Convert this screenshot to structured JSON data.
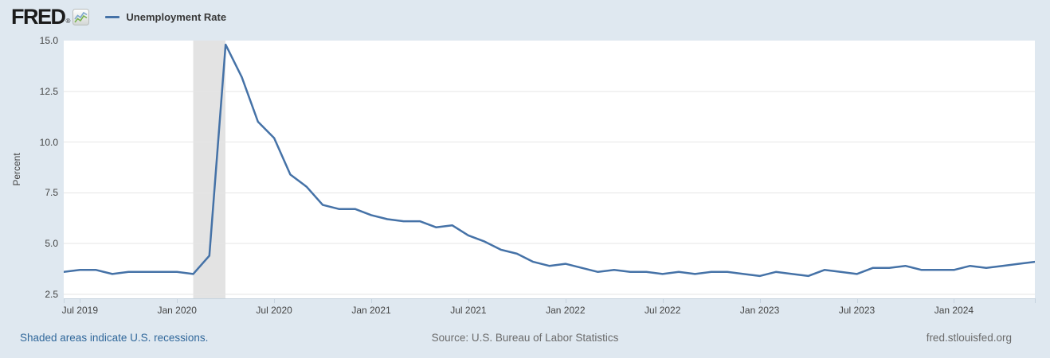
{
  "header": {
    "logo_text": "FRED",
    "registered_mark": "®",
    "legend_label": "Unemployment Rate"
  },
  "footer": {
    "recession_note": "Shaded areas indicate U.S. recessions.",
    "source": "Source: U.S. Bureau of Labor Statistics",
    "site": "fred.stlouisfed.org"
  },
  "colors": {
    "page_background": "#dfe8f0",
    "plot_background": "#ffffff",
    "line": "#4572a7",
    "recession_band": "#e3e3e3",
    "gridline": "#e6e6e6",
    "axis_line": "#c6d3df",
    "tick_label": "#444444",
    "footer_link": "#31689b",
    "footer_text": "#6b6b6b"
  },
  "chart_data": {
    "type": "line",
    "title": "Unemployment Rate",
    "ylabel": "Percent",
    "frequency": "monthly",
    "x_start": "2019-06",
    "x_end": "2024-06",
    "ylim": [
      2.3,
      15.0
    ],
    "grid": true,
    "legend_position": "top-left",
    "gridline_values": [
      15.0,
      12.5,
      10.0,
      7.5,
      5.0,
      2.5
    ],
    "x_ticks": [
      {
        "label": "Jul 2019",
        "month_index": 1
      },
      {
        "label": "Jan 2020",
        "month_index": 7
      },
      {
        "label": "Jul 2020",
        "month_index": 13
      },
      {
        "label": "Jan 2021",
        "month_index": 19
      },
      {
        "label": "Jul 2021",
        "month_index": 25
      },
      {
        "label": "Jan 2022",
        "month_index": 31
      },
      {
        "label": "Jul 2022",
        "month_index": 37
      },
      {
        "label": "Jan 2023",
        "month_index": 43
      },
      {
        "label": "Jul 2023",
        "month_index": 49
      },
      {
        "label": "Jan 2024",
        "month_index": 55
      }
    ],
    "recession_bands": [
      {
        "start": "2020-02",
        "end": "2020-04",
        "start_month_index": 8,
        "end_month_index": 10
      }
    ],
    "series": [
      {
        "name": "Unemployment Rate",
        "color": "#4572a7",
        "months": "monthly values from 2019-06 through 2024-06",
        "values": [
          3.6,
          3.7,
          3.7,
          3.5,
          3.6,
          3.6,
          3.6,
          3.6,
          3.5,
          4.4,
          14.8,
          13.2,
          11.0,
          10.2,
          8.4,
          7.8,
          6.9,
          6.7,
          6.7,
          6.4,
          6.2,
          6.1,
          6.1,
          5.8,
          5.9,
          5.4,
          5.1,
          4.7,
          4.5,
          4.1,
          3.9,
          4.0,
          3.8,
          3.6,
          3.7,
          3.6,
          3.6,
          3.5,
          3.6,
          3.5,
          3.6,
          3.6,
          3.5,
          3.4,
          3.6,
          3.5,
          3.4,
          3.7,
          3.6,
          3.5,
          3.8,
          3.8,
          3.9,
          3.7,
          3.7,
          3.7,
          3.9,
          3.8,
          3.9,
          4.0,
          4.1
        ]
      }
    ]
  }
}
